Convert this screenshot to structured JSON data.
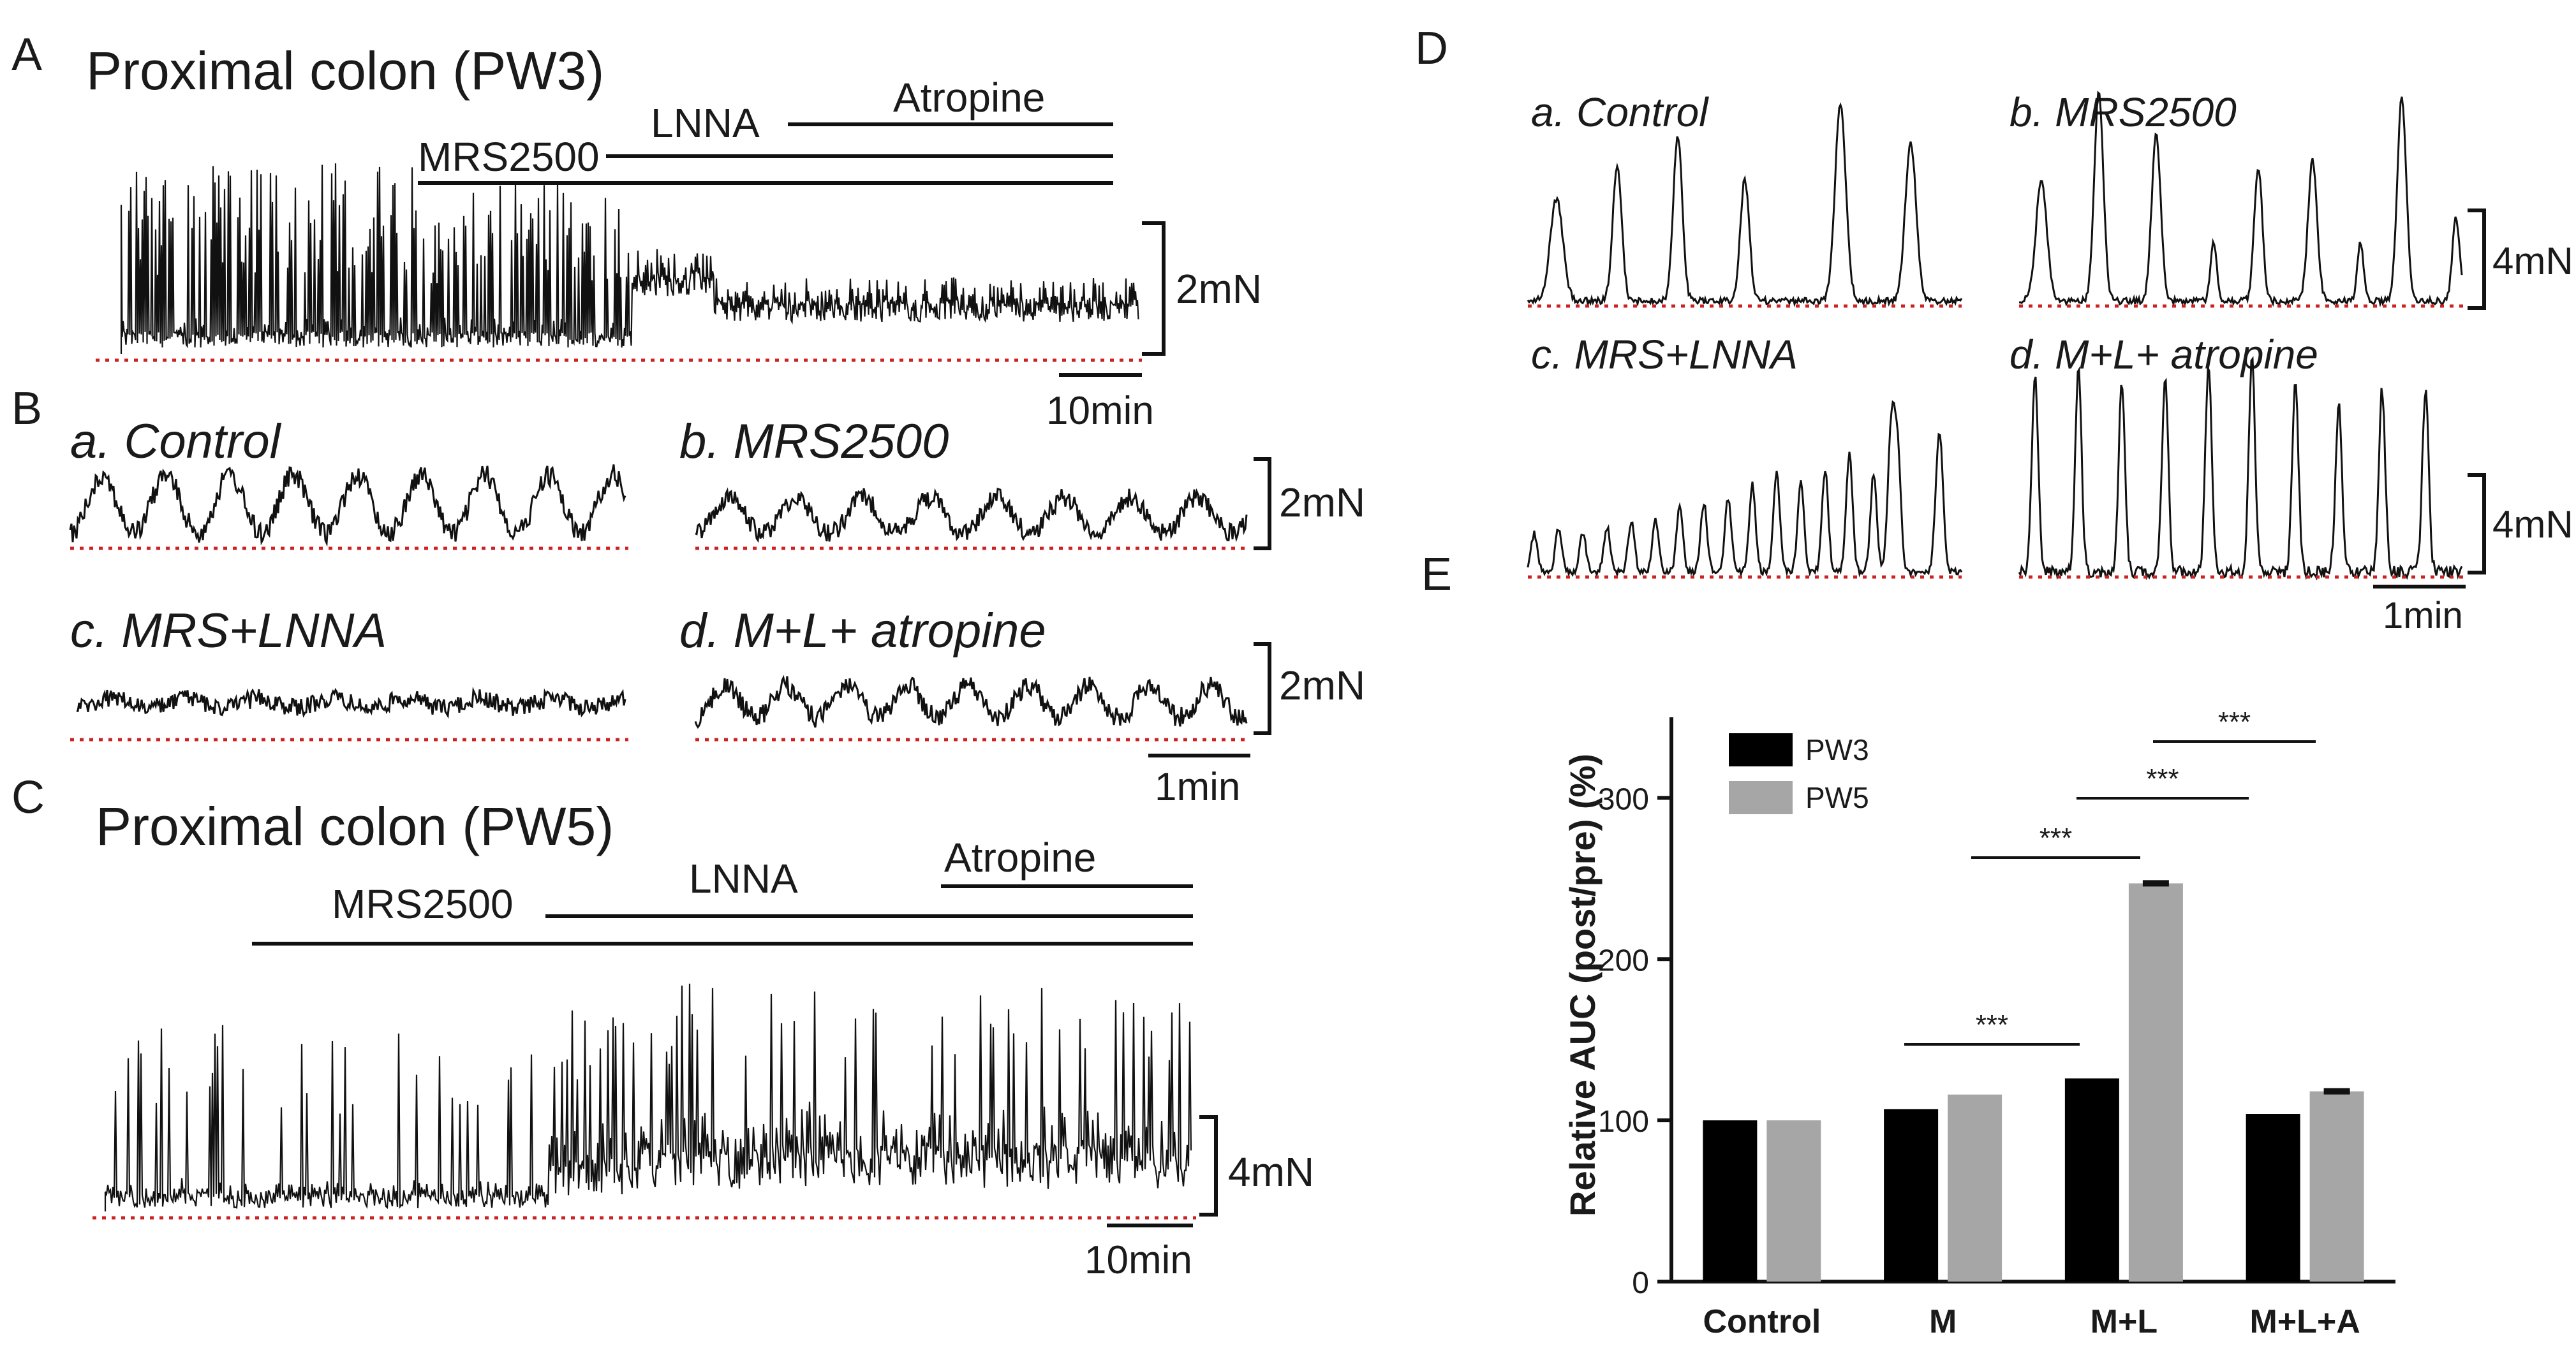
{
  "colors": {
    "trace": "#111111",
    "baseline": "#cc2222",
    "pw3": "#000000",
    "pw5": "#a6a6a6",
    "text": "#1a1a1a"
  },
  "panelA": {
    "letter": "A",
    "title": "Proximal colon (PW3)",
    "drugs": [
      "MRS2500",
      "LNNA",
      "Atropine"
    ],
    "scale_force": "2mN",
    "scale_time": "10min"
  },
  "panelB": {
    "letter": "B",
    "sub": [
      "a. Control",
      "b. MRS2500",
      "c. MRS+LNNA",
      "d. M+L+ atropine"
    ],
    "scale_force": "2mN",
    "scale_time": "1min"
  },
  "panelC": {
    "letter": "C",
    "title": "Proximal colon (PW5)",
    "drugs": [
      "MRS2500",
      "LNNA",
      "Atropine"
    ],
    "scale_force": "4mN",
    "scale_time": "10min"
  },
  "panelD": {
    "letter": "D",
    "sub": [
      "a. Control",
      "b. MRS2500",
      "c. MRS+LNNA",
      "d. M+L+ atropine"
    ],
    "scale_force": "4mN",
    "scale_time": "1min"
  },
  "panelE": {
    "letter": "E"
  },
  "chart_data": {
    "type": "bar",
    "title": "",
    "xlabel": "",
    "ylabel": "Relative AUC (post/pre) (%)",
    "categories": [
      "Control",
      "M",
      "M+L",
      "M+L+A"
    ],
    "series": [
      {
        "name": "PW3",
        "values": [
          100,
          107,
          126,
          104
        ],
        "errors": [
          0,
          0,
          0,
          0
        ]
      },
      {
        "name": "PW5",
        "values": [
          100,
          116,
          247,
          118
        ],
        "errors": [
          0,
          0,
          2,
          2
        ]
      }
    ],
    "ylim": [
      0,
      350
    ],
    "yticks": [
      0,
      100,
      200,
      300
    ],
    "legend_position": "top-left",
    "significance": [
      {
        "from": "M",
        "to": "M+L",
        "label": "***"
      },
      {
        "from": "M",
        "to": "M+L",
        "label": "***"
      },
      {
        "from": "M+L",
        "to": "M+L+A",
        "label": "***"
      },
      {
        "from": "M+L",
        "to": "M+L+A",
        "label": "***"
      }
    ]
  }
}
